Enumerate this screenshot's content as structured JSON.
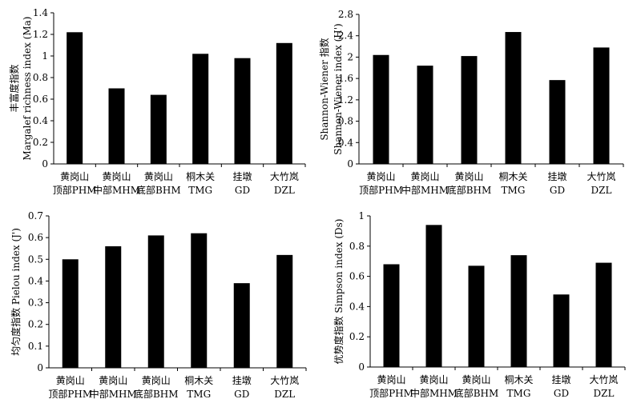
{
  "chart_data": [
    {
      "type": "bar",
      "ylabel_lines": [
        "丰富度指数",
        "Margalef richness index (Ma)"
      ],
      "categories": [
        [
          "黄岗山",
          "顶部PHM"
        ],
        [
          "黄岗山",
          "中部MHM"
        ],
        [
          "黄岗山",
          "底部BHM"
        ],
        [
          "桐木关",
          "TMG"
        ],
        [
          "挂墩",
          "GD"
        ],
        [
          "大竹岚",
          "DZL"
        ]
      ],
      "values": [
        1.22,
        0.7,
        0.64,
        1.02,
        0.98,
        1.12
      ],
      "ylim": [
        0,
        1.4
      ],
      "yticks": [
        "0",
        "0.2",
        "0.4",
        "0.6",
        "0.8",
        "1",
        "1.2",
        "1.4"
      ],
      "bar_color": "#000000",
      "grid": false
    },
    {
      "type": "bar",
      "ylabel_lines": [
        "Shannon-Wiener 指数",
        "Shannon-Wiener index (H')"
      ],
      "categories": [
        [
          "黄岗山",
          "顶部PHM"
        ],
        [
          "黄岗山",
          "中部MHM"
        ],
        [
          "黄岗山",
          "底部BHM"
        ],
        [
          "桐木关",
          "TMG"
        ],
        [
          "挂墩",
          "GD"
        ],
        [
          "大竹岚",
          "DZL"
        ]
      ],
      "values": [
        2.04,
        1.84,
        2.02,
        2.47,
        1.57,
        2.18
      ],
      "ylim": [
        0,
        2.8
      ],
      "yticks": [
        "0",
        "0.4",
        "0.8",
        "1.2",
        "1.6",
        "2",
        "2.4",
        "2.8"
      ],
      "bar_color": "#000000",
      "grid": false
    },
    {
      "type": "bar",
      "ylabel_lines": [
        "均匀度指数 Pielou index (J')"
      ],
      "categories": [
        [
          "黄岗山",
          "顶部PHM"
        ],
        [
          "黄岗山",
          "中部MHM"
        ],
        [
          "黄岗山",
          "底部BHM"
        ],
        [
          "桐木关",
          "TMG"
        ],
        [
          "挂墩",
          "GD"
        ],
        [
          "大竹岚",
          "DZL"
        ]
      ],
      "values": [
        0.5,
        0.56,
        0.61,
        0.62,
        0.39,
        0.52
      ],
      "ylim": [
        0,
        0.7
      ],
      "yticks": [
        "0",
        "0.1",
        "0.2",
        "0.3",
        "0.4",
        "0.5",
        "0.6",
        "0.7"
      ],
      "bar_color": "#000000",
      "grid": false
    },
    {
      "type": "bar",
      "ylabel_lines": [
        "优势度指数 Simpson index (Ds)"
      ],
      "categories": [
        [
          "黄岗山",
          "顶部PHM"
        ],
        [
          "黄岗山",
          "中部MHM"
        ],
        [
          "黄岗山",
          "底部BHM"
        ],
        [
          "桐木关",
          "TMG"
        ],
        [
          "挂墩",
          "GD"
        ],
        [
          "大竹岚",
          "DZL"
        ]
      ],
      "values": [
        0.68,
        0.94,
        0.67,
        0.74,
        0.48,
        0.69
      ],
      "ylim": [
        0,
        1
      ],
      "yticks": [
        "0",
        "0.2",
        "0.4",
        "0.6",
        "0.8",
        "1"
      ],
      "bar_color": "#000000",
      "grid": false
    }
  ]
}
